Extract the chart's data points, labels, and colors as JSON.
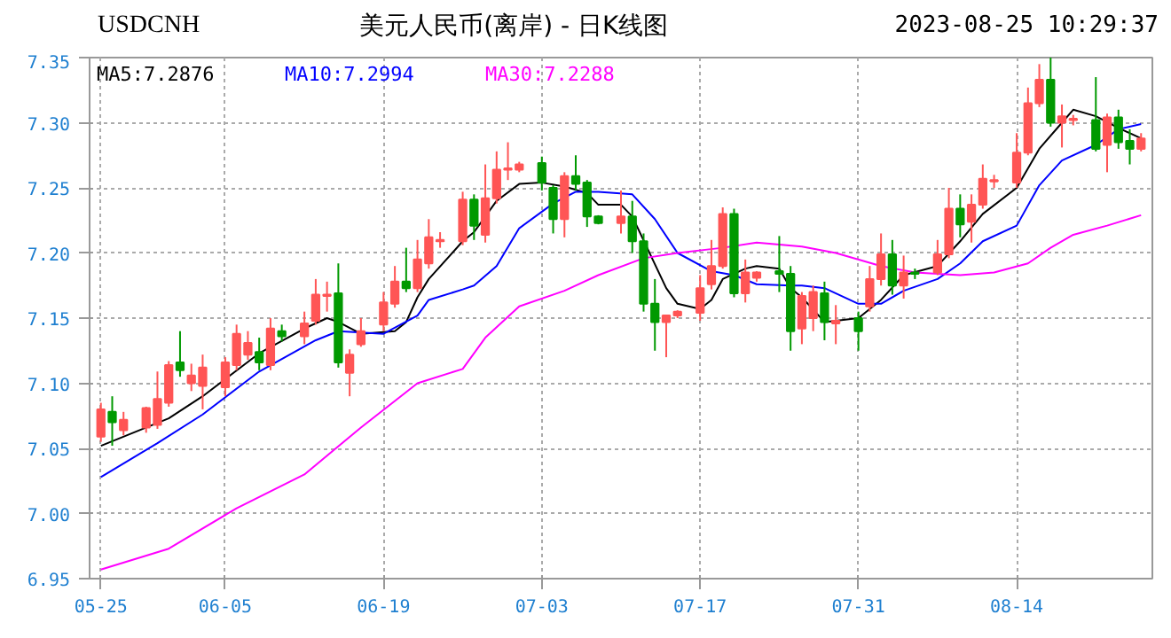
{
  "chart_data": {
    "type": "candlestick",
    "title": "美元人民币(离岸) - 日K线图",
    "subtitle": "USDCNH",
    "annotations": [
      "2023-08-25 10:29:37"
    ],
    "x": [
      "2023-05-25",
      "2023-05-26",
      "2023-05-27",
      "2023-05-29",
      "2023-05-30",
      "2023-05-31",
      "2023-06-01",
      "2023-06-02",
      "2023-06-03",
      "2023-06-05",
      "2023-06-06",
      "2023-06-07",
      "2023-06-08",
      "2023-06-09",
      "2023-06-10",
      "2023-06-12",
      "2023-06-13",
      "2023-06-14",
      "2023-06-15",
      "2023-06-16",
      "2023-06-17",
      "2023-06-19",
      "2023-06-20",
      "2023-06-21",
      "2023-06-22",
      "2023-06-23",
      "2023-06-24",
      "2023-06-26",
      "2023-06-27",
      "2023-06-28",
      "2023-06-29",
      "2023-06-30",
      "2023-07-01",
      "2023-07-03",
      "2023-07-04",
      "2023-07-05",
      "2023-07-06",
      "2023-07-07",
      "2023-07-08",
      "2023-07-10",
      "2023-07-11",
      "2023-07-12",
      "2023-07-13",
      "2023-07-14",
      "2023-07-15",
      "2023-07-17",
      "2023-07-18",
      "2023-07-19",
      "2023-07-20",
      "2023-07-21",
      "2023-07-22",
      "2023-07-24",
      "2023-07-25",
      "2023-07-26",
      "2023-07-27",
      "2023-07-28",
      "2023-07-29",
      "2023-07-31",
      "2023-08-01",
      "2023-08-02",
      "2023-08-03",
      "2023-08-04",
      "2023-08-05",
      "2023-08-07",
      "2023-08-08",
      "2023-08-09",
      "2023-08-10",
      "2023-08-11",
      "2023-08-12",
      "2023-08-14",
      "2023-08-15",
      "2023-08-16",
      "2023-08-17",
      "2023-08-18",
      "2023-08-19",
      "2023-08-21",
      "2023-08-22",
      "2023-08-23",
      "2023-08-24",
      "2023-08-25"
    ],
    "ohlc": [
      [
        7.059,
        7.085,
        7.055,
        7.08
      ],
      [
        7.078,
        7.09,
        7.052,
        7.07
      ],
      [
        7.064,
        7.078,
        7.06,
        7.072
      ],
      [
        7.066,
        7.082,
        7.062,
        7.081
      ],
      [
        7.068,
        7.109,
        7.065,
        7.088
      ],
      [
        7.085,
        7.117,
        7.082,
        7.114
      ],
      [
        7.116,
        7.14,
        7.105,
        7.11
      ],
      [
        7.1,
        7.115,
        7.094,
        7.106
      ],
      [
        7.098,
        7.122,
        7.08,
        7.112
      ],
      [
        7.097,
        7.12,
        7.09,
        7.116
      ],
      [
        7.114,
        7.145,
        7.11,
        7.138
      ],
      [
        7.122,
        7.14,
        7.118,
        7.131
      ],
      [
        7.124,
        7.135,
        7.11,
        7.116
      ],
      [
        7.114,
        7.15,
        7.11,
        7.142
      ],
      [
        7.14,
        7.145,
        7.132,
        7.136
      ],
      [
        7.136,
        7.155,
        7.13,
        7.146
      ],
      [
        7.148,
        7.18,
        7.145,
        7.168
      ],
      [
        7.167,
        7.178,
        7.155,
        7.168
      ],
      [
        7.169,
        7.192,
        7.112,
        7.116
      ],
      [
        7.108,
        7.126,
        7.09,
        7.122
      ],
      [
        7.13,
        7.15,
        7.128,
        7.14
      ],
      [
        7.145,
        7.17,
        7.14,
        7.162
      ],
      [
        7.161,
        7.19,
        7.158,
        7.178
      ],
      [
        7.178,
        7.204,
        7.17,
        7.173
      ],
      [
        7.173,
        7.21,
        7.17,
        7.195
      ],
      [
        7.192,
        7.226,
        7.188,
        7.212
      ],
      [
        7.209,
        7.216,
        7.204,
        7.21
      ],
      [
        7.209,
        7.247,
        7.206,
        7.241
      ],
      [
        7.241,
        7.245,
        7.21,
        7.221
      ],
      [
        7.214,
        7.268,
        7.208,
        7.242
      ],
      [
        7.242,
        7.278,
        7.238,
        7.264
      ],
      [
        7.264,
        7.285,
        7.256,
        7.265
      ],
      [
        7.264,
        7.27,
        7.262,
        7.268
      ],
      [
        7.269,
        7.274,
        7.248,
        7.254
      ],
      [
        7.25,
        7.252,
        7.215,
        7.226
      ],
      [
        7.226,
        7.262,
        7.212,
        7.259
      ],
      [
        7.259,
        7.275,
        7.248,
        7.253
      ],
      [
        7.254,
        7.256,
        7.22,
        7.228
      ],
      [
        7.228,
        7.229,
        7.222,
        7.223
      ],
      [
        7.223,
        7.248,
        7.215,
        7.228
      ],
      [
        7.228,
        7.24,
        7.2,
        7.209
      ],
      [
        7.209,
        7.215,
        7.155,
        7.161
      ],
      [
        7.161,
        7.18,
        7.125,
        7.147
      ],
      [
        7.147,
        7.152,
        7.12,
        7.152
      ],
      [
        7.152,
        7.156,
        7.15,
        7.155
      ],
      [
        7.154,
        7.183,
        7.148,
        7.173
      ],
      [
        7.176,
        7.21,
        7.172,
        7.19
      ],
      [
        7.19,
        7.235,
        7.188,
        7.23
      ],
      [
        7.23,
        7.234,
        7.166,
        7.169
      ],
      [
        7.169,
        7.195,
        7.162,
        7.185
      ],
      [
        7.181,
        7.186,
        7.178,
        7.185
      ],
      [
        7.186,
        7.213,
        7.17,
        7.184
      ],
      [
        7.184,
        7.19,
        7.125,
        7.14
      ],
      [
        7.142,
        7.17,
        7.13,
        7.167
      ],
      [
        7.15,
        7.175,
        7.14,
        7.17
      ],
      [
        7.169,
        7.178,
        7.133,
        7.147
      ],
      [
        7.146,
        7.16,
        7.13,
        7.148
      ],
      [
        7.15,
        7.155,
        7.125,
        7.14
      ],
      [
        7.159,
        7.19,
        7.155,
        7.18
      ],
      [
        7.18,
        7.215,
        7.175,
        7.199
      ],
      [
        7.199,
        7.21,
        7.168,
        7.175
      ],
      [
        7.175,
        7.198,
        7.165,
        7.185
      ],
      [
        7.185,
        7.188,
        7.18,
        7.184
      ],
      [
        7.185,
        7.21,
        7.183,
        7.199
      ],
      [
        7.199,
        7.25,
        7.196,
        7.234
      ],
      [
        7.234,
        7.245,
        7.212,
        7.222
      ],
      [
        7.224,
        7.245,
        7.208,
        7.237
      ],
      [
        7.237,
        7.268,
        7.234,
        7.257
      ],
      [
        7.255,
        7.26,
        7.25,
        7.256
      ],
      [
        7.254,
        7.292,
        7.25,
        7.277
      ],
      [
        7.277,
        7.327,
        7.275,
        7.315
      ],
      [
        7.315,
        7.345,
        7.312,
        7.333
      ],
      [
        7.333,
        7.35,
        7.297,
        7.3
      ],
      [
        7.3,
        7.314,
        7.281,
        7.305
      ],
      [
        7.302,
        7.306,
        7.298,
        7.303
      ],
      [
        7.302,
        7.335,
        7.278,
        7.28
      ],
      [
        7.283,
        7.307,
        7.262,
        7.304
      ],
      [
        7.304,
        7.31,
        7.28,
        7.285
      ],
      [
        7.286,
        7.295,
        7.268,
        7.28
      ],
      [
        7.28,
        7.292,
        7.278,
        7.288
      ]
    ],
    "colors": [
      "#ff5555",
      "#009900",
      "#ff5555",
      "#ff5555",
      "#ff5555",
      "#ff5555",
      "#009900",
      "#ff5555",
      "#ff5555",
      "#ff5555",
      "#ff5555",
      "#ff5555",
      "#009900",
      "#ff5555",
      "#009900",
      "#ff5555",
      "#ff5555",
      "#ff5555",
      "#009900",
      "#ff5555",
      "#ff5555",
      "#ff5555",
      "#ff5555",
      "#009900",
      "#ff5555",
      "#ff5555",
      "#ff5555",
      "#ff5555",
      "#009900",
      "#ff5555",
      "#ff5555",
      "#ff5555",
      "#ff5555",
      "#009900",
      "#009900",
      "#ff5555",
      "#009900",
      "#009900",
      "#009900",
      "#ff5555",
      "#009900",
      "#009900",
      "#009900",
      "#ff5555",
      "#ff5555",
      "#ff5555",
      "#ff5555",
      "#ff5555",
      "#009900",
      "#ff5555",
      "#ff5555",
      "#009900",
      "#009900",
      "#ff5555",
      "#ff5555",
      "#009900",
      "#ff5555",
      "#009900",
      "#ff5555",
      "#ff5555",
      "#009900",
      "#ff5555",
      "#009900",
      "#ff5555",
      "#ff5555",
      "#009900",
      "#ff5555",
      "#ff5555",
      "#ff5555",
      "#ff5555",
      "#ff5555",
      "#ff5555",
      "#009900",
      "#ff5555",
      "#ff5555",
      "#009900",
      "#ff5555",
      "#009900",
      "#009900",
      "#ff5555"
    ],
    "series": [
      {
        "name": "MA5:7.2876",
        "type": "line",
        "color": "#000000",
        "x": [
          "2023-05-25",
          "2023-05-31",
          "2023-06-03",
          "2023-06-08",
          "2023-06-12",
          "2023-06-14",
          "2023-06-15",
          "2023-06-17",
          "2023-06-20",
          "2023-06-21",
          "2023-06-22",
          "2023-06-23",
          "2023-06-26",
          "2023-06-27",
          "2023-06-29",
          "2023-07-01",
          "2023-07-03",
          "2023-07-05",
          "2023-07-07",
          "2023-07-08",
          "2023-07-10",
          "2023-07-11",
          "2023-07-14",
          "2023-07-15",
          "2023-07-17",
          "2023-07-18",
          "2023-07-19",
          "2023-07-21",
          "2023-07-22",
          "2023-07-24",
          "2023-07-25",
          "2023-07-26",
          "2023-07-28",
          "2023-07-31",
          "2023-08-02",
          "2023-08-04",
          "2023-08-07",
          "2023-08-09",
          "2023-08-11",
          "2023-08-14",
          "2023-08-16",
          "2023-08-18",
          "2023-08-19",
          "2023-08-21",
          "2023-08-23",
          "2023-08-25"
        ],
        "values": [
          7.052,
          7.073,
          7.09,
          7.123,
          7.142,
          7.15,
          7.147,
          7.138,
          7.14,
          7.147,
          7.166,
          7.18,
          7.209,
          7.216,
          7.24,
          7.253,
          7.254,
          7.251,
          7.246,
          7.237,
          7.237,
          7.228,
          7.173,
          7.161,
          7.157,
          7.164,
          7.18,
          7.188,
          7.19,
          7.188,
          7.173,
          7.166,
          7.147,
          7.15,
          7.164,
          7.183,
          7.19,
          7.209,
          7.23,
          7.25,
          7.28,
          7.3,
          7.31,
          7.305,
          7.296,
          7.288
        ]
      },
      {
        "name": "MA10:7.2994",
        "type": "line",
        "color": "#0000ff",
        "x": [
          "2023-05-25",
          "2023-05-30",
          "2023-06-03",
          "2023-06-08",
          "2023-06-13",
          "2023-06-15",
          "2023-06-19",
          "2023-06-22",
          "2023-06-23",
          "2023-06-26",
          "2023-06-27",
          "2023-06-29",
          "2023-07-01",
          "2023-07-04",
          "2023-07-06",
          "2023-07-08",
          "2023-07-11",
          "2023-07-13",
          "2023-07-15",
          "2023-07-18",
          "2023-07-20",
          "2023-07-22",
          "2023-07-25",
          "2023-07-26",
          "2023-07-28",
          "2023-07-31",
          "2023-08-02",
          "2023-08-04",
          "2023-08-07",
          "2023-08-09",
          "2023-08-11",
          "2023-08-14",
          "2023-08-16",
          "2023-08-18",
          "2023-08-21",
          "2023-08-23",
          "2023-08-25"
        ],
        "values": [
          7.028,
          7.054,
          7.076,
          7.109,
          7.133,
          7.14,
          7.138,
          7.152,
          7.164,
          7.172,
          7.175,
          7.19,
          7.219,
          7.238,
          7.247,
          7.247,
          7.245,
          7.226,
          7.2,
          7.186,
          7.183,
          7.176,
          7.175,
          7.175,
          7.173,
          7.161,
          7.161,
          7.171,
          7.18,
          7.192,
          7.209,
          7.221,
          7.252,
          7.271,
          7.283,
          7.295,
          7.299
        ]
      },
      {
        "name": "MA30:7.2288",
        "type": "line",
        "color": "#ff00ff",
        "x": [
          "2023-05-25",
          "2023-05-31",
          "2023-06-06",
          "2023-06-12",
          "2023-06-17",
          "2023-06-22",
          "2023-06-26",
          "2023-06-28",
          "2023-07-01",
          "2023-07-05",
          "2023-07-08",
          "2023-07-12",
          "2023-07-15",
          "2023-07-19",
          "2023-07-22",
          "2023-07-26",
          "2023-07-29",
          "2023-08-02",
          "2023-08-05",
          "2023-08-09",
          "2023-08-12",
          "2023-08-15",
          "2023-08-17",
          "2023-08-19",
          "2023-08-22",
          "2023-08-25"
        ],
        "values": [
          6.957,
          6.973,
          7.004,
          7.03,
          7.066,
          7.1,
          7.111,
          7.135,
          7.159,
          7.171,
          7.183,
          7.196,
          7.2,
          7.204,
          7.208,
          7.205,
          7.2,
          7.19,
          7.185,
          7.183,
          7.185,
          7.192,
          7.204,
          7.214,
          7.221,
          7.229
        ]
      }
    ],
    "xlim": [
      "2023-05-24",
      "2023-08-26"
    ],
    "xticks": [
      {
        "value": "2023-05-25",
        "label": "05-25"
      },
      {
        "value": "2023-06-05",
        "label": "06-05"
      },
      {
        "value": "2023-06-19",
        "label": "06-19"
      },
      {
        "value": "2023-07-03",
        "label": "07-03"
      },
      {
        "value": "2023-07-17",
        "label": "07-17"
      },
      {
        "value": "2023-07-31",
        "label": "07-31"
      },
      {
        "value": "2023-08-14",
        "label": "08-14"
      }
    ],
    "ylim": [
      6.95,
      7.35
    ],
    "yticks": [
      {
        "value": 6.95,
        "label": "6.95"
      },
      {
        "value": 7.0,
        "label": "7.00"
      },
      {
        "value": 7.05,
        "label": "7.05"
      },
      {
        "value": 7.1,
        "label": "7.10"
      },
      {
        "value": 7.15,
        "label": "7.15"
      },
      {
        "value": 7.2,
        "label": "7.20"
      },
      {
        "value": 7.25,
        "label": "7.25"
      },
      {
        "value": 7.3,
        "label": "7.30"
      },
      {
        "value": 7.35,
        "label": "7.35"
      }
    ],
    "grid": true,
    "legend": "top left"
  }
}
